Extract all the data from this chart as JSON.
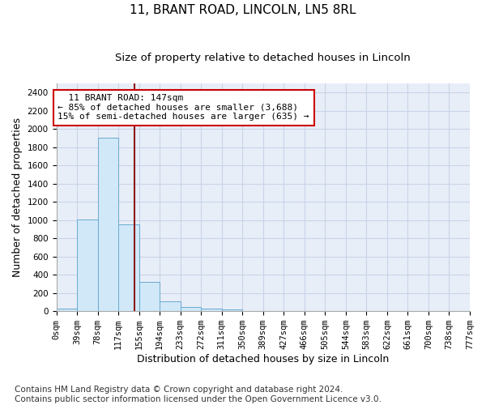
{
  "title": "11, BRANT ROAD, LINCOLN, LN5 8RL",
  "subtitle": "Size of property relative to detached houses in Lincoln",
  "xlabel": "Distribution of detached houses by size in Lincoln",
  "ylabel": "Number of detached properties",
  "bin_labels": [
    "0sqm",
    "39sqm",
    "78sqm",
    "117sqm",
    "155sqm",
    "194sqm",
    "233sqm",
    "272sqm",
    "311sqm",
    "350sqm",
    "389sqm",
    "427sqm",
    "466sqm",
    "505sqm",
    "544sqm",
    "583sqm",
    "622sqm",
    "661sqm",
    "700sqm",
    "738sqm",
    "777sqm"
  ],
  "bar_values": [
    30,
    1005,
    1905,
    950,
    320,
    110,
    50,
    25,
    20,
    0,
    0,
    0,
    0,
    0,
    0,
    0,
    0,
    0,
    0,
    0
  ],
  "bar_color": "#d0e8f8",
  "bar_edge_color": "#6aaacf",
  "ylim": [
    0,
    2500
  ],
  "yticks": [
    0,
    200,
    400,
    600,
    800,
    1000,
    1200,
    1400,
    1600,
    1800,
    2000,
    2200,
    2400
  ],
  "vline_x": 147,
  "vline_color": "#8b1a1a",
  "bin_width": 39,
  "annotation_title": "11 BRANT ROAD: 147sqm",
  "annotation_line2": "← 85% of detached houses are smaller (3,688)",
  "annotation_line3": "15% of semi-detached houses are larger (635) →",
  "annotation_box_color": "#ffffff",
  "annotation_box_edge": "#cc0000",
  "footer_line1": "Contains HM Land Registry data © Crown copyright and database right 2024.",
  "footer_line2": "Contains public sector information licensed under the Open Government Licence v3.0.",
  "background_color": "#ffffff",
  "plot_bg_color": "#e8eef8",
  "grid_color": "#c8d4e8",
  "title_fontsize": 11,
  "subtitle_fontsize": 9.5,
  "axis_label_fontsize": 9,
  "tick_fontsize": 7.5,
  "annotation_fontsize": 8,
  "footer_fontsize": 7.5
}
